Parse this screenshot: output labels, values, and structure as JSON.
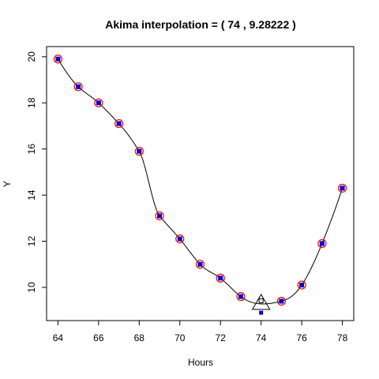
{
  "chart_data": {
    "type": "line",
    "title": "Akima interpolation = ( 74 , 9.28222 )",
    "xlabel": "Hours",
    "ylabel": "Y",
    "xlim": [
      63.44,
      78.56
    ],
    "ylim": [
      8.56,
      20.44
    ],
    "x_ticks": [
      64,
      66,
      68,
      70,
      72,
      74,
      76,
      78
    ],
    "y_ticks": [
      10,
      12,
      14,
      16,
      18,
      20
    ],
    "grid": false,
    "points": {
      "x": [
        64,
        65,
        66,
        67,
        68,
        69,
        70,
        71,
        72,
        73,
        75,
        76,
        77,
        78
      ],
      "y": [
        19.9,
        18.7,
        18.0,
        17.1,
        15.9,
        13.1,
        12.1,
        11.0,
        10.4,
        9.6,
        9.4,
        10.1,
        11.9,
        14.3
      ]
    },
    "outlier_point": {
      "x": 74,
      "y": 8.9
    },
    "interpolated_point": {
      "x": 74,
      "y": 9.28222
    },
    "colors": {
      "point_fill": "#0000cd",
      "ring": "#ff0000",
      "curve": "#000000",
      "marker": "#000000"
    }
  }
}
